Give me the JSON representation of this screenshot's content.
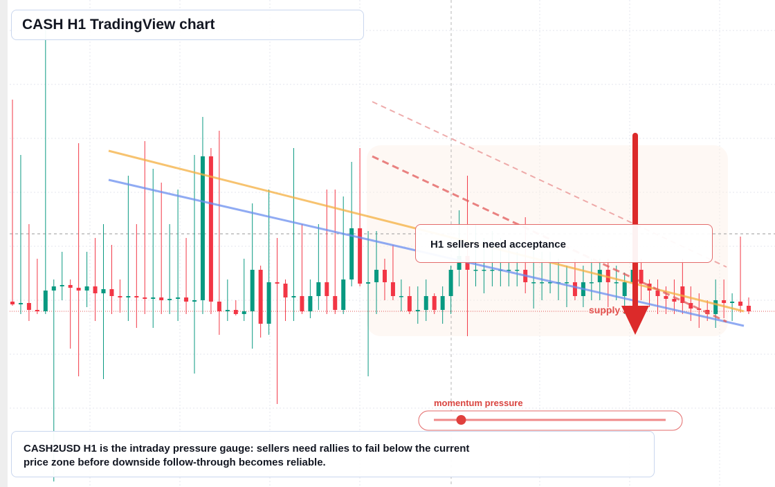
{
  "chart_data": {
    "type": "candlestick",
    "title": "CASH H1 TradingView chart",
    "callout": "H1 sellers need acceptance",
    "zone_label": "supply zone",
    "momentum": {
      "label": "momentum pressure",
      "value": 7,
      "range": [
        0,
        100
      ]
    },
    "footer": "CASH2USD H1 is the intraday pressure gauge: sellers need rallies to fail below the current price zone before downside follow-through becomes reliable.",
    "ylim": [
      0,
      704
    ],
    "colors": {
      "up": "#089981",
      "down": "#f23645"
    },
    "open": [
      268,
      264,
      266,
      256,
      254,
      284,
      290,
      292,
      288,
      284,
      290,
      280,
      286,
      276,
      274,
      276,
      274,
      272,
      274,
      270,
      272,
      274,
      268,
      270,
      478,
      268,
      254,
      256,
      250,
      254,
      314,
      236,
      296,
      294,
      274,
      276,
      254,
      276,
      296,
      276,
      256,
      300,
      374,
      294,
      296,
      314,
      296,
      276,
      276,
      254,
      256,
      276,
      256,
      276,
      314,
      334,
      314,
      314,
      314,
      314,
      314,
      314,
      314,
      296,
      296,
      296,
      296,
      296,
      296,
      276,
      296,
      296,
      314,
      296,
      276,
      296,
      314,
      294,
      284,
      276,
      272,
      290,
      266,
      258,
      256,
      250,
      270,
      266,
      268,
      262
    ],
    "high": [
      560,
      480,
      380,
      330,
      664,
      300,
      340,
      300,
      497,
      340,
      360,
      380,
      350,
      300,
      450,
      380,
      500,
      460,
      440,
      380,
      430,
      360,
      480,
      535,
      490,
      515,
      300,
      270,
      330,
      410,
      320,
      430,
      360,
      300,
      490,
      380,
      300,
      380,
      430,
      430,
      420,
      470,
      490,
      370,
      370,
      330,
      350,
      300,
      290,
      290,
      300,
      280,
      290,
      320,
      400,
      450,
      380,
      360,
      370,
      360,
      350,
      340,
      390,
      350,
      340,
      340,
      330,
      320,
      330,
      320,
      330,
      330,
      330,
      320,
      310,
      380,
      330,
      300,
      300,
      290,
      300,
      330,
      290,
      280,
      270,
      300,
      300,
      280,
      362,
      274
    ],
    "low": [
      262,
      250,
      240,
      250,
      250,
      8,
      270,
      200,
      160,
      260,
      240,
      156,
      250,
      252,
      240,
      230,
      250,
      230,
      250,
      250,
      240,
      250,
      164,
      250,
      250,
      220,
      240,
      248,
      240,
      200,
      216,
      220,
      120,
      240,
      240,
      250,
      244,
      256,
      250,
      250,
      250,
      290,
      290,
      160,
      250,
      270,
      270,
      254,
      250,
      236,
      240,
      250,
      236,
      250,
      290,
      218,
      290,
      280,
      290,
      290,
      290,
      290,
      280,
      258,
      270,
      280,
      270,
      260,
      270,
      260,
      270,
      270,
      260,
      270,
      250,
      260,
      270,
      260,
      250,
      250,
      250,
      250,
      240,
      230,
      240,
      230,
      244,
      240,
      252,
      250
    ],
    "close": [
      264,
      266,
      256,
      254,
      284,
      290,
      292,
      288,
      284,
      290,
      280,
      286,
      276,
      274,
      276,
      274,
      272,
      274,
      270,
      272,
      274,
      268,
      270,
      478,
      268,
      254,
      256,
      250,
      254,
      314,
      236,
      296,
      294,
      274,
      276,
      254,
      276,
      296,
      276,
      256,
      300,
      374,
      294,
      296,
      314,
      296,
      276,
      276,
      254,
      256,
      276,
      256,
      276,
      314,
      334,
      314,
      314,
      314,
      314,
      314,
      314,
      314,
      296,
      296,
      296,
      296,
      296,
      296,
      276,
      296,
      296,
      314,
      296,
      296,
      296,
      314,
      294,
      284,
      276,
      272,
      268,
      266,
      258,
      256,
      250,
      270,
      266,
      268,
      262,
      254
    ]
  }
}
